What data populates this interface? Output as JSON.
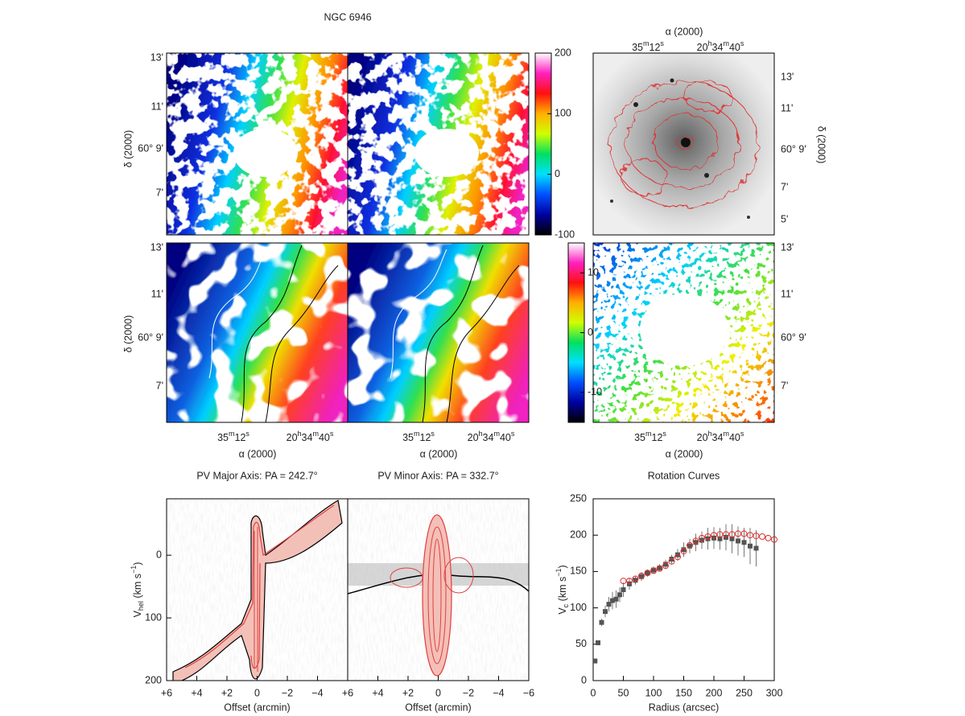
{
  "figure": {
    "title": "NGC 6946"
  },
  "maps": {
    "ra_label": "α (2000)",
    "dec_label": "δ (2000)",
    "ra_ticks": [
      [
        "35",
        {
          "sup": "m"
        },
        "12",
        {
          "sup": "s"
        }
      ],
      [
        "20",
        {
          "sup": "h"
        },
        "34",
        {
          "sup": "m"
        },
        "40",
        {
          "sup": "s"
        }
      ]
    ],
    "dec_ticks": [
      "13'",
      "11'",
      "60° 9'",
      "7'"
    ],
    "dec_ticks_optical": [
      "13'",
      "11'",
      "60° 9'",
      "7'",
      "5'"
    ]
  },
  "chart_data": [
    {
      "type": "colorbar",
      "colormap": [
        "#000000",
        "#0000a0",
        "#0050ff",
        "#00e0ff",
        "#00e060",
        "#d0ff00",
        "#ffb000",
        "#ff1010",
        "#ff20c0",
        "#ffffff"
      ],
      "ylim": [
        -100,
        200
      ],
      "yticks": [
        -100,
        0,
        100,
        200
      ]
    },
    {
      "type": "colorbar",
      "colormap": [
        "#000000",
        "#0000a0",
        "#0050ff",
        "#00e0ff",
        "#00e060",
        "#d0ff00",
        "#ffb000",
        "#ff1010",
        "#ff20c0",
        "#ffffff"
      ],
      "ylim": [
        -15,
        15
      ],
      "yticks": [
        -10,
        0,
        10
      ]
    },
    {
      "type": "pv",
      "title": "PV Major Axis: PA = 242.7°",
      "xlabel": "Offset (arcmin)",
      "ylabel": [
        "V",
        {
          "sub": "hel"
        },
        " (km s",
        {
          "sup": "−1"
        },
        ")"
      ],
      "xlim": [
        6,
        -6
      ],
      "xticks": [
        {
          "value": 6,
          "label": "+6"
        },
        {
          "value": 4,
          "label": "+4"
        },
        {
          "value": 2,
          "label": "+2"
        },
        0,
        {
          "value": -2,
          "label": "−2"
        },
        {
          "value": -4,
          "label": "−4"
        }
      ],
      "ylim": [
        200,
        -90
      ],
      "yticks": [
        0,
        100,
        200
      ]
    },
    {
      "type": "pv",
      "title": "PV Minor Axis: PA = 332.7°",
      "xlabel": "Offset (arcmin)",
      "xlim": [
        6,
        -6
      ],
      "xticks": [
        {
          "value": 6,
          "label": "+6"
        },
        {
          "value": 4,
          "label": "+4"
        },
        {
          "value": 2,
          "label": "+2"
        },
        0,
        {
          "value": -2,
          "label": "−2"
        },
        {
          "value": -4,
          "label": "−4"
        },
        {
          "value": -6,
          "label": "−6"
        }
      ],
      "ylim": [
        200,
        -90
      ]
    },
    {
      "type": "scatter",
      "title": "Rotation Curves",
      "xlabel": "Radius (arcsec)",
      "ylabel": [
        "V",
        {
          "sub": "c"
        },
        " (km s",
        {
          "sup": "−1"
        },
        ")"
      ],
      "xlim": [
        0,
        300
      ],
      "xticks": [
        0,
        50,
        100,
        150,
        200,
        250,
        300
      ],
      "ylim": [
        0,
        250
      ],
      "yticks": [
        0,
        50,
        100,
        150,
        200,
        250
      ],
      "series": [
        {
          "color": "#e03030",
          "marker": "open-circle",
          "x": [
            50,
            60,
            70,
            80,
            90,
            100,
            110,
            120,
            130,
            140,
            150,
            160,
            170,
            180,
            190,
            200,
            210,
            220,
            230,
            240,
            250,
            260,
            270,
            280,
            290,
            300
          ],
          "values": [
            137,
            137,
            140,
            144,
            148,
            151,
            154,
            158,
            164,
            170,
            178,
            186,
            192,
            196,
            198,
            200,
            201,
            201,
            201,
            202,
            202,
            200,
            199,
            198,
            196,
            194
          ]
        },
        {
          "color": "#555555",
          "marker": "square",
          "x": [
            3,
            8,
            14,
            20,
            26,
            32,
            38,
            44,
            50,
            60,
            70,
            80,
            90,
            100,
            110,
            120,
            130,
            140,
            150,
            160,
            170,
            180,
            190,
            200,
            210,
            220,
            230,
            240,
            250,
            260,
            270
          ],
          "values": [
            27,
            52,
            80,
            95,
            105,
            110,
            112,
            118,
            125,
            133,
            138,
            143,
            148,
            152,
            155,
            160,
            167,
            173,
            180,
            185,
            190,
            193,
            195,
            196,
            195,
            197,
            195,
            192,
            190,
            185,
            182
          ],
          "errors": [
            3,
            3,
            5,
            8,
            10,
            12,
            12,
            10,
            10,
            8,
            6,
            6,
            5,
            5,
            5,
            6,
            6,
            8,
            10,
            10,
            12,
            12,
            15,
            15,
            15,
            18,
            20,
            20,
            20,
            25,
            25
          ]
        }
      ]
    }
  ]
}
